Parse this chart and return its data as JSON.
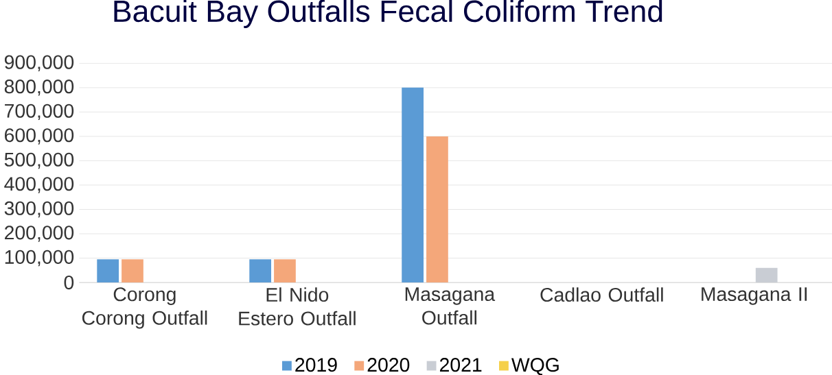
{
  "chart_data": {
    "type": "bar",
    "title": "Bacuit Bay Outfalls Fecal Coliform Trend",
    "categories": [
      "Corong Corong Outfall",
      "El Nido Estero Outfall",
      "Masagana Outfall",
      "Cadlao Outfall",
      "Masagana II"
    ],
    "series": [
      {
        "name": "2019",
        "color": "#5b9bd5",
        "values": [
          95000,
          95000,
          800000,
          null,
          null
        ]
      },
      {
        "name": "2020",
        "color": "#f4a77a",
        "values": [
          95000,
          95000,
          600000,
          null,
          null
        ]
      },
      {
        "name": "2021",
        "color": "#c9cdd4",
        "values": [
          null,
          null,
          null,
          null,
          60000
        ]
      },
      {
        "name": "WQG",
        "color": "#f5d04a",
        "values": [
          null,
          null,
          null,
          null,
          null
        ]
      }
    ],
    "ylim": [
      0,
      900000
    ],
    "yticks": [
      {
        "value": 0,
        "label": "0"
      },
      {
        "value": 100000,
        "label": "100,000"
      },
      {
        "value": 200000,
        "label": "200,000"
      },
      {
        "value": 300000,
        "label": "300,000"
      },
      {
        "value": 400000,
        "label": "400,000"
      },
      {
        "value": 500000,
        "label": "500,000"
      },
      {
        "value": 600000,
        "label": "600,000"
      },
      {
        "value": 700000,
        "label": "700,000"
      },
      {
        "value": 800000,
        "label": "800,000"
      },
      {
        "value": 900000,
        "label": "900,000"
      }
    ],
    "grid": "y",
    "legend": "bottom"
  }
}
